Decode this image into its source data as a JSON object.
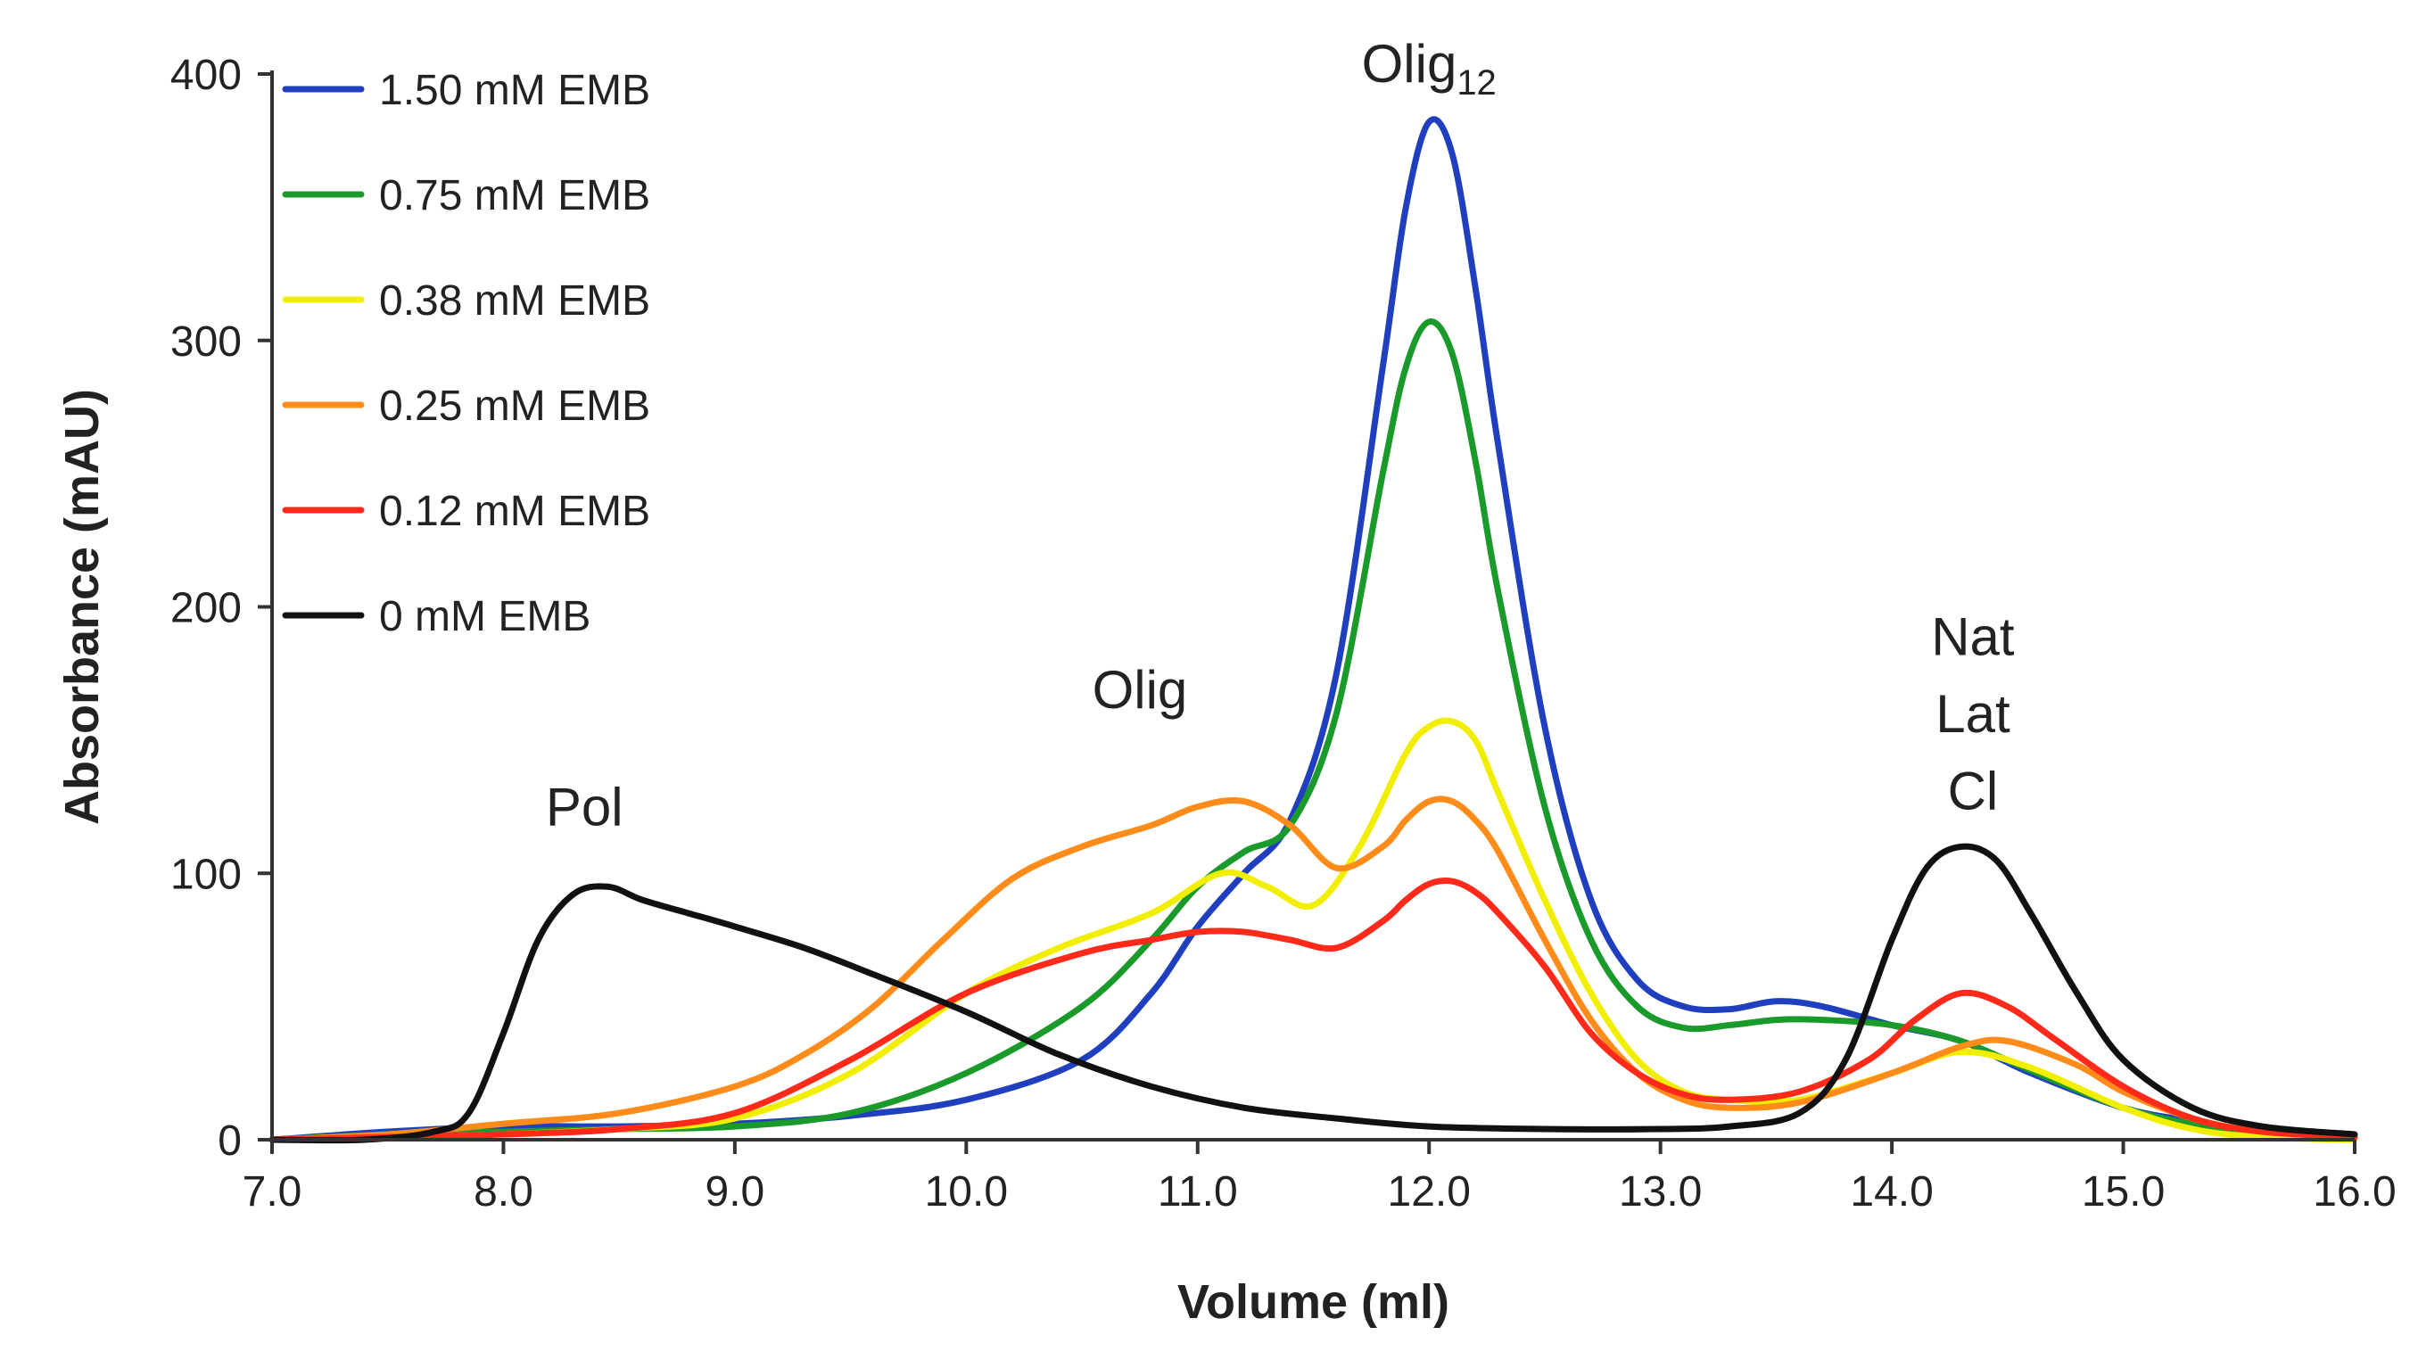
{
  "chart_data": {
    "type": "line",
    "title": "",
    "xlabel": "Volume (ml)",
    "ylabel": "Absorbance (mAU)",
    "xlim": [
      7.0,
      16.0
    ],
    "ylim": [
      0,
      400
    ],
    "xticks": [
      "7.0",
      "8.0",
      "9.0",
      "10.0",
      "11.0",
      "12.0",
      "13.0",
      "14.0",
      "15.0",
      "16.0"
    ],
    "yticks": [
      "0",
      "100",
      "200",
      "300",
      "400"
    ],
    "grid": false,
    "legend_position": "top-left",
    "series": [
      {
        "name": "1.50 mM EMB",
        "color": "#1f3fbf",
        "x": [
          7.0,
          7.5,
          8.0,
          8.5,
          9.0,
          9.5,
          10.0,
          10.5,
          10.8,
          11.0,
          11.2,
          11.4,
          11.6,
          11.8,
          11.9,
          12.0,
          12.1,
          12.2,
          12.3,
          12.5,
          12.7,
          12.9,
          13.1,
          13.3,
          13.5,
          13.7,
          14.0,
          14.3,
          14.6,
          15.0,
          15.3,
          15.6,
          16.0
        ],
        "y": [
          0,
          3,
          5,
          5,
          6,
          9,
          15,
          30,
          55,
          80,
          100,
          120,
          175,
          290,
          350,
          382,
          370,
          320,
          260,
          155,
          90,
          60,
          50,
          49,
          52,
          50,
          43,
          37,
          25,
          12,
          7,
          3,
          1
        ]
      },
      {
        "name": "0.75 mM EMB",
        "color": "#1a9a2a",
        "x": [
          7.0,
          7.5,
          8.0,
          8.5,
          9.0,
          9.5,
          10.0,
          10.5,
          10.8,
          11.0,
          11.2,
          11.4,
          11.6,
          11.8,
          11.9,
          12.0,
          12.1,
          12.2,
          12.3,
          12.5,
          12.7,
          12.9,
          13.1,
          13.3,
          13.5,
          13.7,
          14.0,
          14.3,
          14.6,
          15.0,
          15.3,
          15.6,
          16.0
        ],
        "y": [
          0,
          2,
          3,
          4,
          5,
          10,
          25,
          50,
          75,
          95,
          108,
          118,
          160,
          250,
          290,
          307,
          295,
          255,
          205,
          125,
          75,
          50,
          42,
          43,
          45,
          45,
          43,
          37,
          26,
          12,
          6,
          3,
          1
        ]
      },
      {
        "name": "0.38 mM EMB",
        "color": "#f2ee00",
        "x": [
          7.0,
          7.5,
          8.0,
          8.5,
          9.0,
          9.5,
          10.0,
          10.4,
          10.8,
          11.1,
          11.3,
          11.5,
          11.7,
          11.9,
          12.0,
          12.1,
          12.2,
          12.3,
          12.5,
          12.7,
          12.9,
          13.1,
          13.3,
          13.6,
          14.0,
          14.3,
          14.6,
          15.0,
          15.3,
          15.6,
          16.0
        ],
        "y": [
          0,
          1,
          2,
          4,
          8,
          25,
          55,
          72,
          85,
          100,
          95,
          88,
          110,
          145,
          155,
          157,
          150,
          130,
          90,
          55,
          30,
          18,
          15,
          15,
          25,
          33,
          27,
          12,
          4,
          1,
          0
        ]
      },
      {
        "name": "0.25 mM EMB",
        "color": "#ff8c1a",
        "x": [
          7.0,
          7.5,
          8.0,
          8.5,
          9.0,
          9.3,
          9.6,
          9.9,
          10.2,
          10.5,
          10.8,
          11.0,
          11.2,
          11.4,
          11.6,
          11.8,
          11.9,
          12.0,
          12.1,
          12.2,
          12.3,
          12.5,
          12.7,
          12.9,
          13.1,
          13.3,
          13.6,
          14.0,
          14.3,
          14.5,
          14.8,
          15.0,
          15.3,
          15.6,
          16.0
        ],
        "y": [
          0,
          2,
          6,
          10,
          20,
          32,
          50,
          75,
          98,
          110,
          118,
          125,
          127,
          118,
          102,
          110,
          120,
          127,
          127,
          120,
          108,
          75,
          45,
          25,
          15,
          12,
          14,
          25,
          35,
          37,
          28,
          18,
          8,
          3,
          1
        ]
      },
      {
        "name": "0.12 mM EMB",
        "color": "#ff2a1a",
        "x": [
          7.0,
          7.5,
          8.0,
          8.5,
          9.0,
          9.5,
          10.0,
          10.5,
          10.8,
          11.0,
          11.2,
          11.4,
          11.6,
          11.8,
          11.9,
          12.0,
          12.1,
          12.2,
          12.3,
          12.5,
          12.7,
          12.9,
          13.1,
          13.3,
          13.6,
          13.9,
          14.1,
          14.3,
          14.5,
          14.7,
          15.0,
          15.3,
          15.6,
          16.0
        ],
        "y": [
          0,
          1,
          2,
          4,
          10,
          30,
          55,
          70,
          75,
          78,
          78,
          75,
          72,
          82,
          90,
          96,
          97,
          93,
          85,
          65,
          40,
          25,
          17,
          15,
          18,
          30,
          45,
          55,
          50,
          38,
          20,
          8,
          3,
          1
        ]
      },
      {
        "name": "0 mM EMB",
        "color": "#111111",
        "x": [
          7.0,
          7.4,
          7.7,
          7.85,
          8.0,
          8.15,
          8.3,
          8.45,
          8.6,
          8.8,
          9.0,
          9.3,
          9.6,
          10.0,
          10.4,
          10.8,
          11.2,
          11.6,
          12.0,
          12.5,
          13.0,
          13.3,
          13.6,
          13.8,
          14.0,
          14.15,
          14.3,
          14.45,
          14.6,
          14.8,
          15.0,
          15.3,
          15.6,
          16.0
        ],
        "y": [
          0,
          0,
          3,
          10,
          40,
          75,
          92,
          95,
          90,
          85,
          80,
          72,
          62,
          48,
          32,
          20,
          12,
          8,
          5,
          4,
          4,
          5,
          10,
          30,
          75,
          102,
          110,
          105,
          85,
          55,
          30,
          12,
          5,
          2
        ]
      }
    ],
    "annotations": [
      {
        "text": "Pol",
        "x": 8.35,
        "y": 118
      },
      {
        "text": "Olig",
        "x": 10.75,
        "y": 162
      },
      {
        "text": "Olig",
        "subscript": "12",
        "x": 12.0,
        "y": 397
      },
      {
        "text": "Nat",
        "x": 14.35,
        "y": 182
      },
      {
        "text": "Lat",
        "x": 14.35,
        "y": 153
      },
      {
        "text": "Cl",
        "x": 14.35,
        "y": 124
      }
    ]
  }
}
